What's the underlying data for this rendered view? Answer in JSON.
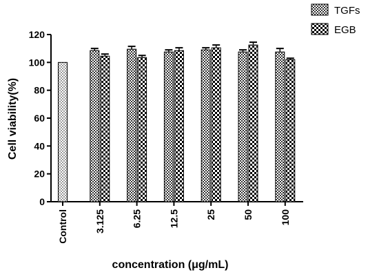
{
  "chart_data": {
    "type": "bar",
    "categories": [
      "Control",
      "3.125",
      "6.25",
      "12.5",
      "25",
      "50",
      "100"
    ],
    "control": {
      "label": "Control",
      "value": 100
    },
    "series": [
      {
        "name": "TGFs",
        "values": [
          null,
          108.5,
          109.5,
          107.5,
          109,
          107.5,
          107.5
        ],
        "errors": [
          null,
          1.5,
          2.0,
          1.5,
          1.5,
          1.5,
          2.5
        ]
      },
      {
        "name": "EGB",
        "values": [
          null,
          104.5,
          103.5,
          108.5,
          110.5,
          112.5,
          102
        ],
        "errors": [
          null,
          1.5,
          1.5,
          2.0,
          2.0,
          2.0,
          1.0
        ]
      }
    ],
    "xlabel": "concentration (μg/mL)",
    "ylabel": "Cell viability(%)",
    "ylim": [
      0,
      120
    ],
    "yticks": [
      0,
      20,
      40,
      60,
      80,
      100,
      120
    ],
    "grid": false,
    "legend_position": "top-right"
  }
}
